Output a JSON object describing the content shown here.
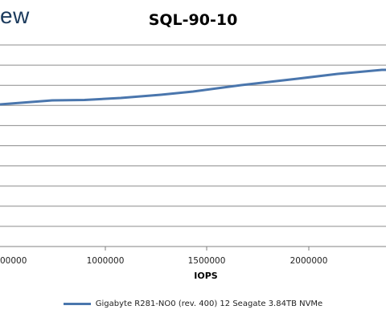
{
  "logo_fragment": "ew",
  "chart_data": {
    "type": "line",
    "title": "SQL-90-10",
    "xlabel": "IOPS",
    "ylabel": "",
    "x_ticks": [
      1000000,
      1500000,
      2000000
    ],
    "x_tick_labels": [
      "1000000",
      "1500000",
      "2000000"
    ],
    "x_partial_tick_label": "00000",
    "grid": true,
    "legend_position": "bottom",
    "series": [
      {
        "name": "Gigabyte R281-NO0 (rev. 400) 12 Seagate 3.84TB NVMe",
        "color": "#4a76ad",
        "x": [
          480000,
          760000,
          900000,
          1100000,
          1400000,
          1700000,
          2000000,
          2250000,
          2460000
        ],
        "y": [
          0.62,
          0.64,
          0.645,
          0.66,
          0.69,
          0.74,
          0.8,
          0.86,
          0.91
        ]
      }
    ]
  }
}
